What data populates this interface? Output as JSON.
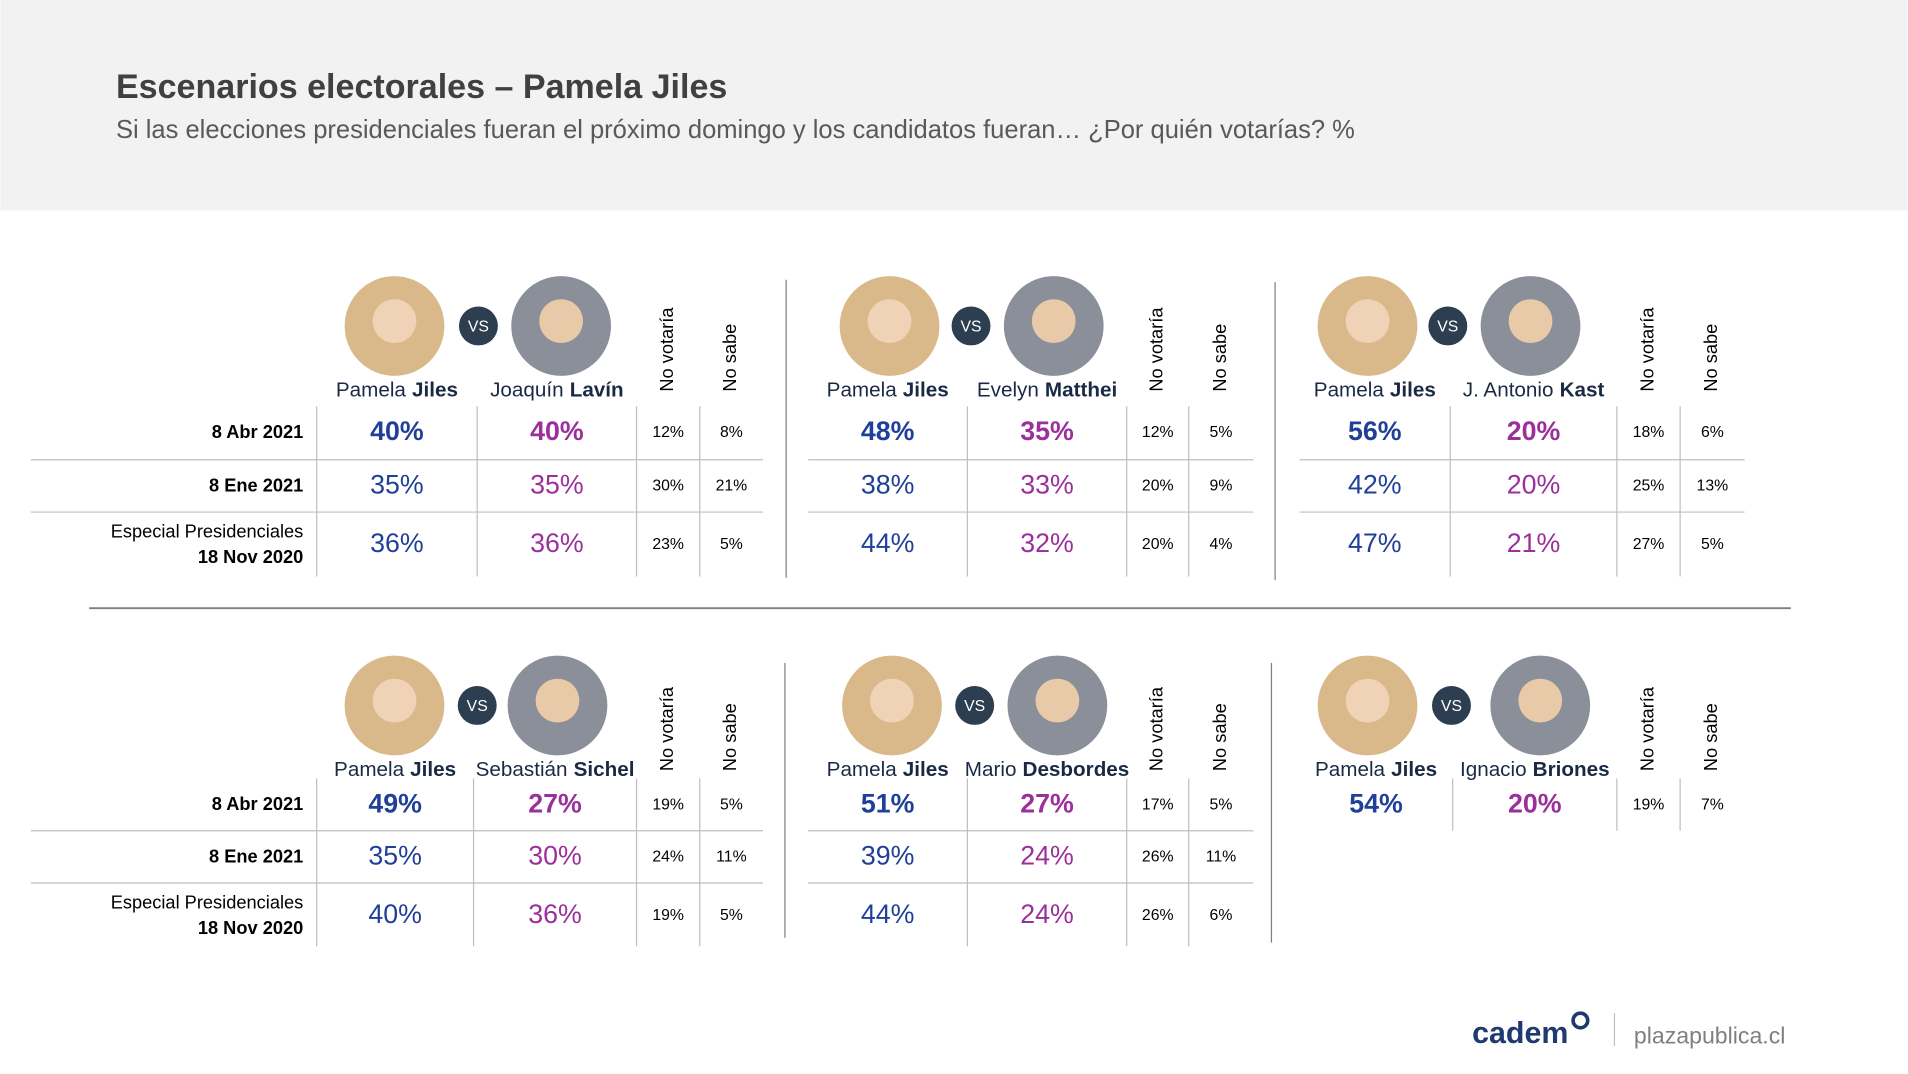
{
  "header": {
    "title": "Escenarios electorales – Pamela Jiles",
    "subtitle": "Si las elecciones presidenciales fueran el próximo domingo y los candidatos fueran… ¿Por quién votarías? %"
  },
  "vs": "VS",
  "columns": [
    "No votaría",
    "No sabe"
  ],
  "row_labels": [
    [
      "8 Abr 2021"
    ],
    [
      "8 Ene 2021"
    ],
    [
      "Especial Presidenciales",
      "18 Nov 2020"
    ]
  ],
  "panels": [
    {
      "candidates": [
        {
          "first": "Pamela",
          "last": "Jiles"
        },
        {
          "first": "Joaquín",
          "last": "Lavín"
        }
      ],
      "rows": [
        [
          "40%",
          "40%",
          "12%",
          "8%"
        ],
        [
          "35%",
          "35%",
          "30%",
          "21%"
        ],
        [
          "36%",
          "36%",
          "23%",
          "5%"
        ]
      ]
    },
    {
      "candidates": [
        {
          "first": "Pamela",
          "last": "Jiles"
        },
        {
          "first": "Evelyn",
          "last": "Matthei"
        }
      ],
      "rows": [
        [
          "48%",
          "35%",
          "12%",
          "5%"
        ],
        [
          "38%",
          "33%",
          "20%",
          "9%"
        ],
        [
          "44%",
          "32%",
          "20%",
          "4%"
        ]
      ]
    },
    {
      "candidates": [
        {
          "first": "Pamela",
          "last": "Jiles"
        },
        {
          "first": "J. Antonio",
          "last": "Kast"
        }
      ],
      "rows": [
        [
          "56%",
          "20%",
          "18%",
          "6%"
        ],
        [
          "42%",
          "20%",
          "25%",
          "13%"
        ],
        [
          "47%",
          "21%",
          "27%",
          "5%"
        ]
      ]
    },
    {
      "candidates": [
        {
          "first": "Pamela",
          "last": "Jiles"
        },
        {
          "first": "Sebastián",
          "last": "Sichel"
        }
      ],
      "rows": [
        [
          "49%",
          "27%",
          "19%",
          "5%"
        ],
        [
          "35%",
          "30%",
          "24%",
          "11%"
        ],
        [
          "40%",
          "36%",
          "19%",
          "5%"
        ]
      ]
    },
    {
      "candidates": [
        {
          "first": "Pamela",
          "last": "Jiles"
        },
        {
          "first": "Mario",
          "last": "Desbordes"
        }
      ],
      "rows": [
        [
          "51%",
          "27%",
          "17%",
          "5%"
        ],
        [
          "39%",
          "24%",
          "26%",
          "11%"
        ],
        [
          "44%",
          "24%",
          "26%",
          "6%"
        ]
      ]
    },
    {
      "candidates": [
        {
          "first": "Pamela",
          "last": "Jiles"
        },
        {
          "first": "Ignacio",
          "last": "Briones"
        }
      ],
      "rows": [
        [
          "54%",
          "20%",
          "19%",
          "7%"
        ]
      ]
    }
  ],
  "footer": {
    "brand": "cadem",
    "site": "plazapublica.cl"
  }
}
